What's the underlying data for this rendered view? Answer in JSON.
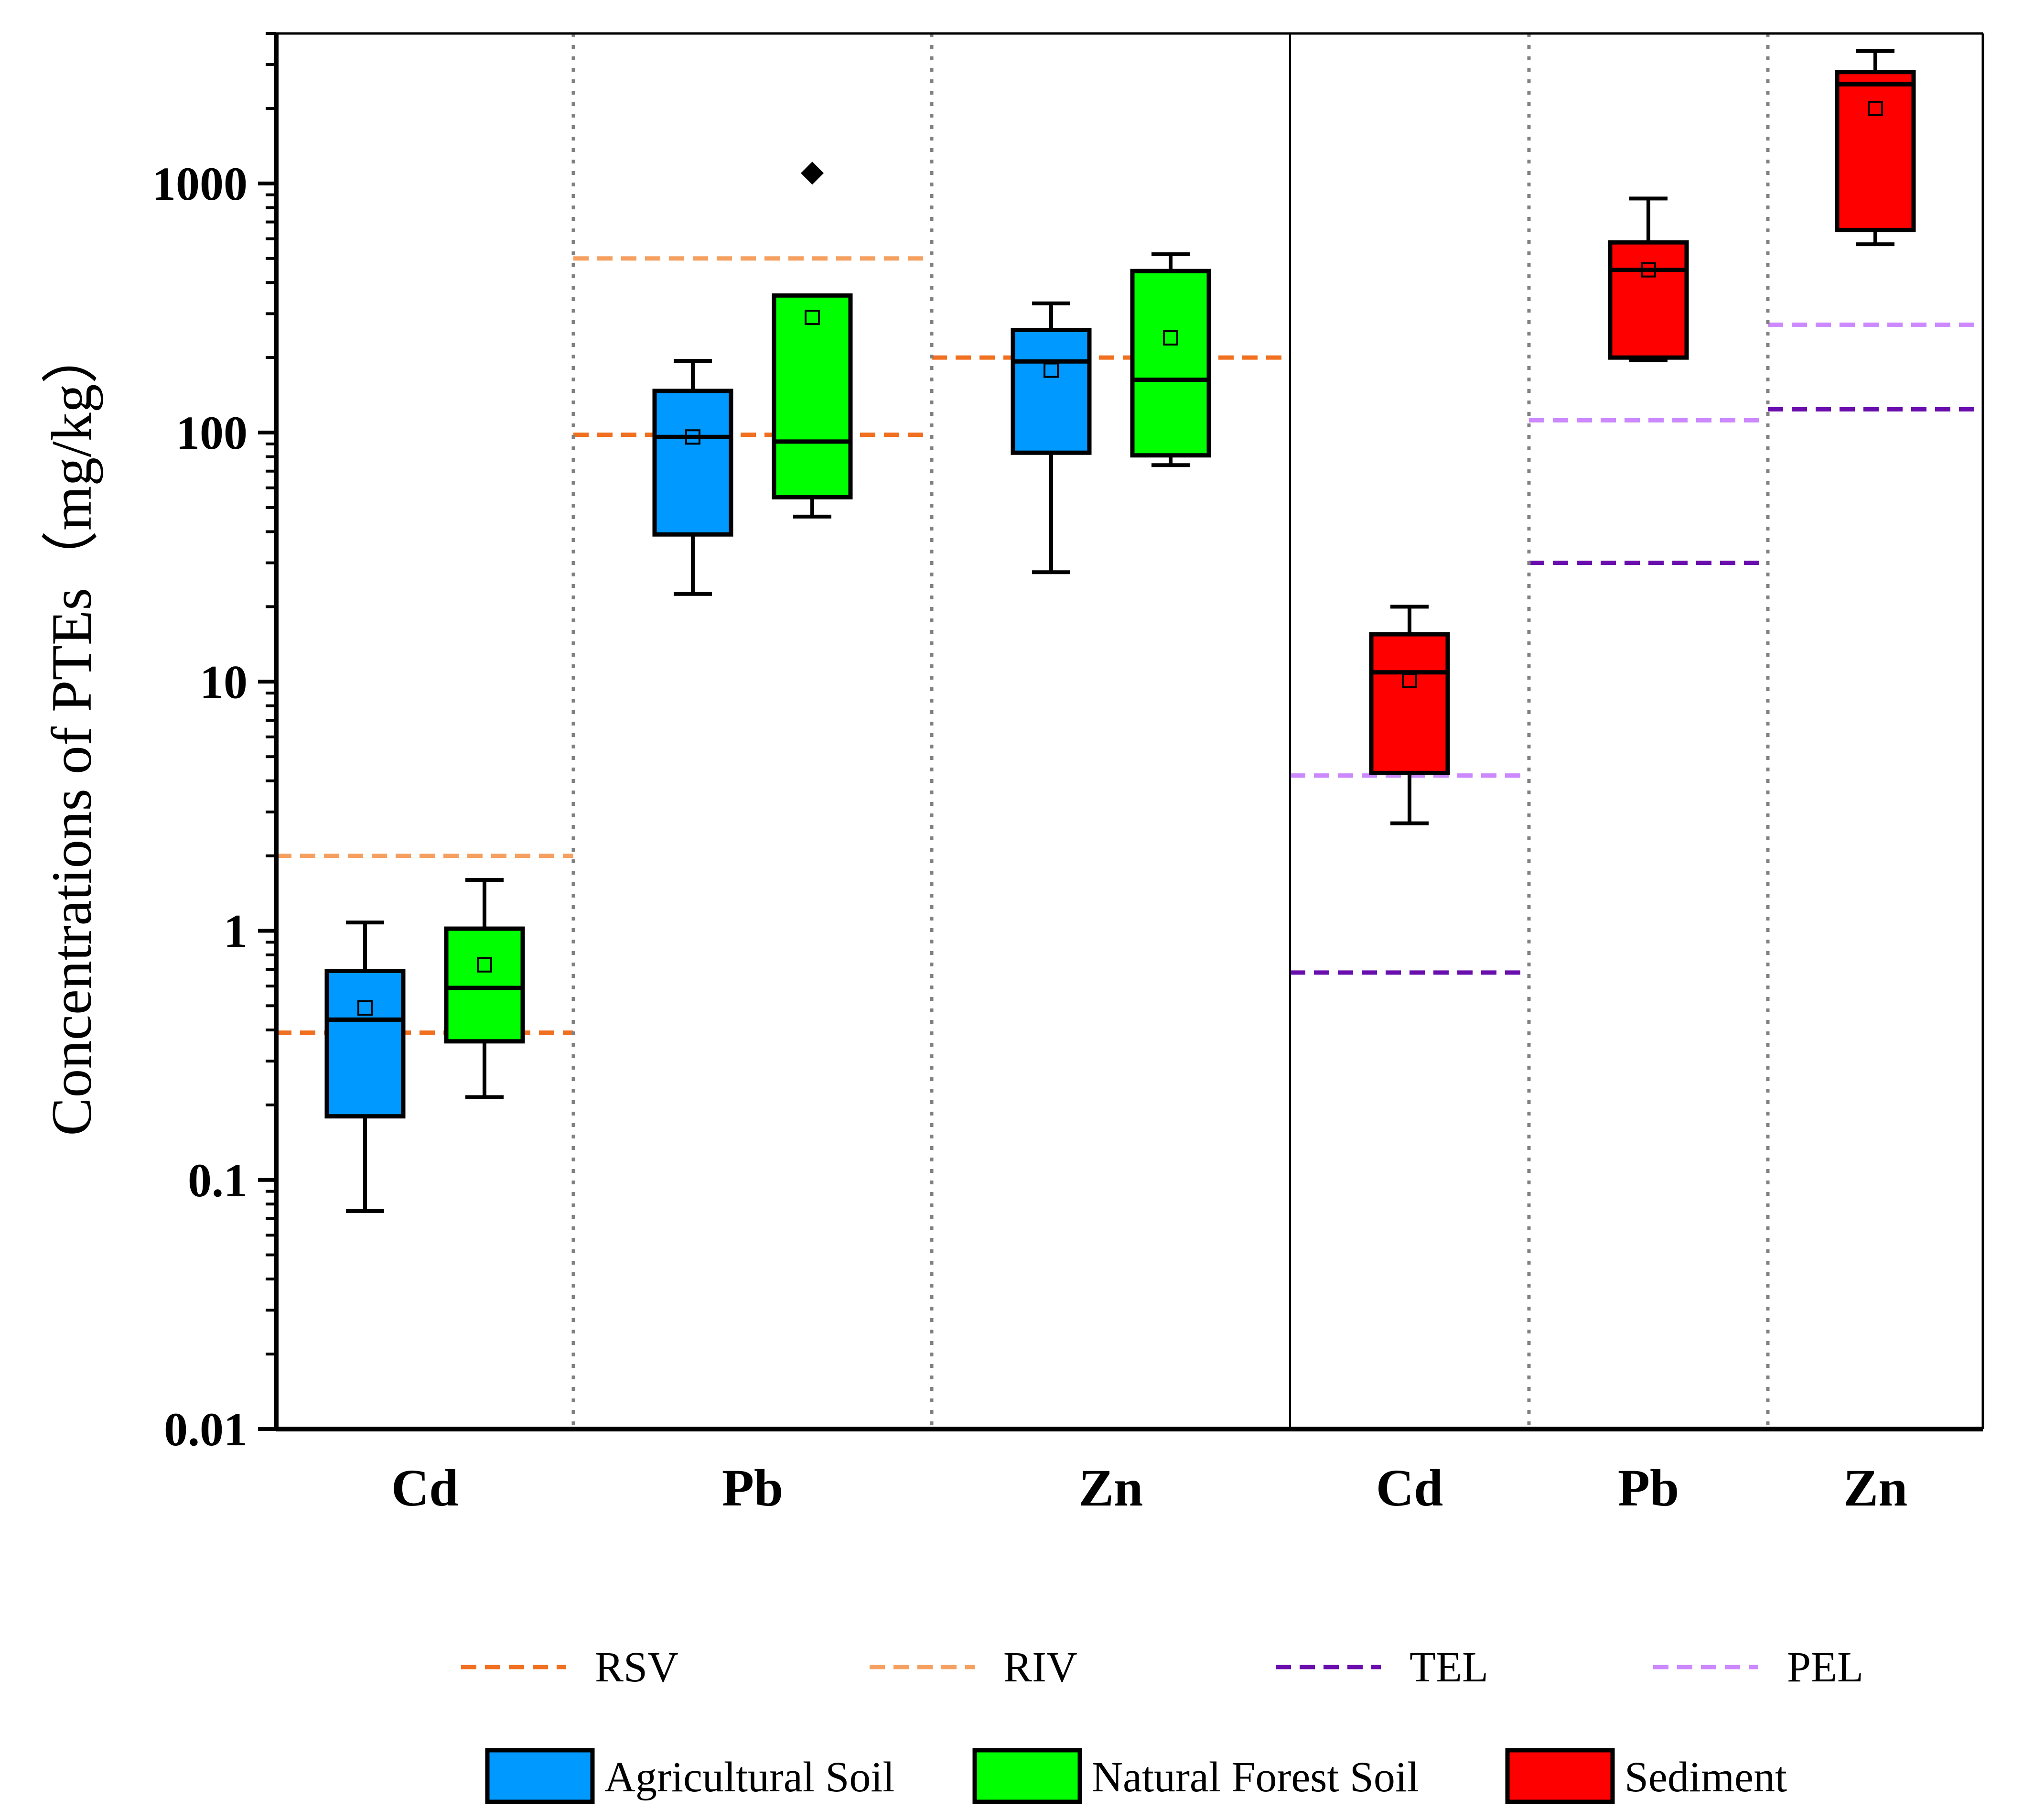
{
  "chart_data": {
    "type": "box",
    "ylabel": "Concentrations of PTEs（mg/kg）",
    "yscale": "log",
    "ylim": [
      0.01,
      4000
    ],
    "yticks": [
      "0.01",
      "0.1",
      "1",
      "10",
      "100",
      "1000"
    ],
    "groups": [
      {
        "name": "Cd",
        "panel": "soil",
        "x": 0
      },
      {
        "name": "Pb",
        "panel": "soil",
        "x": 1
      },
      {
        "name": "Zn",
        "panel": "soil",
        "x": 2
      },
      {
        "name": "Cd",
        "panel": "sediment",
        "x": 3
      },
      {
        "name": "Pb",
        "panel": "sediment",
        "x": 4
      },
      {
        "name": "Zn",
        "panel": "sediment",
        "x": 5
      }
    ],
    "series": [
      {
        "name": "Agricultural Soil",
        "color": "#0099ff",
        "boxes": [
          {
            "group": 0,
            "whisker_low": 0.075,
            "q1": 0.18,
            "median": 0.44,
            "q3": 0.69,
            "whisker_high": 1.08,
            "mean": 0.49
          },
          {
            "group": 1,
            "whisker_low": 22.5,
            "q1": 39,
            "median": 96,
            "q3": 147,
            "whisker_high": 194,
            "mean": 96
          },
          {
            "group": 2,
            "whisker_low": 27.5,
            "q1": 83,
            "median": 193,
            "q3": 258,
            "whisker_high": 330,
            "mean": 178
          }
        ]
      },
      {
        "name": "Natural Forest Soil",
        "color": "#00ff00",
        "boxes": [
          {
            "group": 0,
            "whisker_low": 0.215,
            "q1": 0.36,
            "median": 0.59,
            "q3": 1.02,
            "whisker_high": 1.6,
            "mean": 0.73
          },
          {
            "group": 1,
            "whisker_low": 46,
            "q1": 55,
            "median": 92,
            "q3": 355,
            "whisker_high": 355,
            "mean": 290,
            "outliers": [
              1100
            ]
          },
          {
            "group": 2,
            "whisker_low": 74,
            "q1": 81,
            "median": 163,
            "q3": 445,
            "whisker_high": 520,
            "mean": 240
          }
        ]
      },
      {
        "name": "Sediment",
        "color": "#ff0000",
        "boxes": [
          {
            "group": 3,
            "whisker_low": 2.7,
            "q1": 4.3,
            "median": 10.9,
            "q3": 15.5,
            "whisker_high": 20,
            "mean": 10.1
          },
          {
            "group": 4,
            "whisker_low": 195,
            "q1": 200,
            "median": 450,
            "q3": 580,
            "whisker_high": 870,
            "mean": 450
          },
          {
            "group": 5,
            "whisker_low": 570,
            "q1": 650,
            "median": 2500,
            "q3": 2800,
            "whisker_high": 3400,
            "mean": 2000
          }
        ]
      }
    ],
    "reference_lines": [
      {
        "name": "RSV",
        "color": "#f07020",
        "segments": [
          {
            "group": 0,
            "value": 0.39
          },
          {
            "group": 1,
            "value": 98
          },
          {
            "group": 2,
            "value": 200
          }
        ]
      },
      {
        "name": "RIV",
        "color": "#f5a060",
        "segments": [
          {
            "group": 0,
            "value": 2.0
          },
          {
            "group": 1,
            "value": 500
          }
        ]
      },
      {
        "name": "TEL",
        "color": "#6a0dad",
        "segments": [
          {
            "group": 3,
            "value": 0.68
          },
          {
            "group": 4,
            "value": 30
          },
          {
            "group": 5,
            "value": 124
          }
        ]
      },
      {
        "name": "PEL",
        "color": "#cc88ff",
        "segments": [
          {
            "group": 3,
            "value": 4.2
          },
          {
            "group": 4,
            "value": 112
          },
          {
            "group": 5,
            "value": 271
          }
        ]
      }
    ]
  }
}
